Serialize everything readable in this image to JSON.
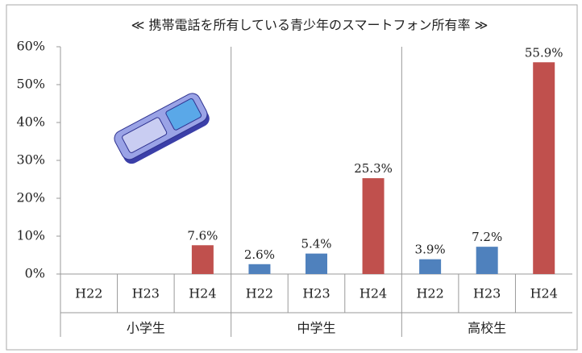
{
  "chart_data": {
    "type": "bar",
    "title": "≪ 携帯電話を所有している青少年のスマートフォン所有率 ≫",
    "categories": [
      "H22",
      "H23",
      "H24",
      "H22",
      "H23",
      "H24",
      "H22",
      "H23",
      "H24"
    ],
    "groups": [
      "小学生",
      "中学生",
      "高校生"
    ],
    "values": [
      null,
      null,
      7.6,
      2.6,
      5.4,
      25.3,
      3.9,
      7.2,
      55.9
    ],
    "value_labels": [
      null,
      null,
      "7.6%",
      "2.6%",
      "5.4%",
      "25.3%",
      "3.9%",
      "7.2%",
      "55.9%"
    ],
    "colors": [
      "#4f81bd",
      "#4f81bd",
      "#c0504d",
      "#4f81bd",
      "#4f81bd",
      "#c0504d",
      "#4f81bd",
      "#4f81bd",
      "#c0504d"
    ],
    "ylim": [
      0,
      60
    ],
    "yticks": [
      {
        "value": 0,
        "label": "0%"
      },
      {
        "value": 10,
        "label": "10%"
      },
      {
        "value": 20,
        "label": "20%"
      },
      {
        "value": 30,
        "label": "30%"
      },
      {
        "value": 40,
        "label": "40%"
      },
      {
        "value": 50,
        "label": "50%"
      },
      {
        "value": 60,
        "label": "60%"
      }
    ]
  }
}
